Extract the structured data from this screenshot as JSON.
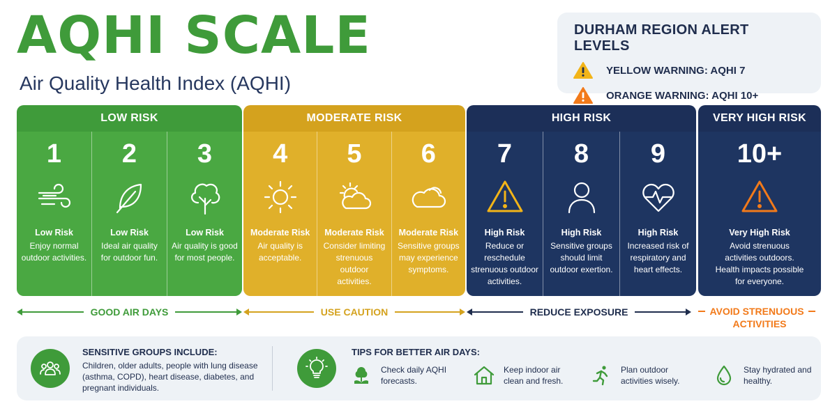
{
  "header": {
    "title": "AQHI SCALE",
    "subtitle": "Air Quality Health Index (AQHI)"
  },
  "alerts": {
    "title": "DURHAM REGION ALERT LEVELS",
    "items": [
      {
        "label": "YELLOW WARNING: AQHI 7",
        "icon": "warning-triangle-icon",
        "color": "#f2b418"
      },
      {
        "label": "ORANGE WARNING: AQHI 10+",
        "icon": "warning-triangle-icon",
        "color": "#f27a1a"
      }
    ]
  },
  "colors": {
    "low": "#4aa842",
    "moderate": "#e0b02a",
    "high": "#1e3561",
    "very_high": "#1e3561",
    "orange_accent": "#f27a1a",
    "yellow_accent": "#f2b418"
  },
  "bands": [
    {
      "title": "LOW RISK",
      "levels": [
        {
          "value": "1",
          "icon": "wind-icon",
          "risk": "Low Risk",
          "desc": "Enjoy normal outdoor activities."
        },
        {
          "value": "2",
          "icon": "leaf-icon",
          "risk": "Low Risk",
          "desc": "Ideal air quality for outdoor fun."
        },
        {
          "value": "3",
          "icon": "tree-icon",
          "risk": "Low Risk",
          "desc": "Air quality is good for most people."
        }
      ]
    },
    {
      "title": "MODERATE RISK",
      "levels": [
        {
          "value": "4",
          "icon": "sun-icon",
          "risk": "Moderate Risk",
          "desc": "Air quality is acceptable."
        },
        {
          "value": "5",
          "icon": "sun-cloud-icon",
          "risk": "Moderate Risk",
          "desc": "Consider limiting strenuous outdoor activities."
        },
        {
          "value": "6",
          "icon": "cloud-icon",
          "risk": "Moderate Risk",
          "desc": "Sensitive groups may experience symptoms."
        }
      ]
    },
    {
      "title": "HIGH RISK",
      "levels": [
        {
          "value": "7",
          "icon": "warning-triangle-icon",
          "risk": "High Risk",
          "desc": "Reduce or reschedule strenuous outdoor activities."
        },
        {
          "value": "8",
          "icon": "person-icon",
          "risk": "High Risk",
          "desc": "Sensitive groups should limit outdoor exertion."
        },
        {
          "value": "9",
          "icon": "heart-pulse-icon",
          "risk": "High Risk",
          "desc": "Increased risk of respiratory and heart effects."
        }
      ]
    },
    {
      "title": "VERY HIGH RISK",
      "levels": [
        {
          "value": "10+",
          "icon": "warning-triangle-icon",
          "risk": "Very High Risk",
          "desc": "Avoid strenuous activities outdoors. Health impacts possible for everyone."
        }
      ]
    }
  ],
  "arrows": [
    {
      "label": "GOOD AIR DAYS",
      "color": "#3f9b3a"
    },
    {
      "label": "USE CAUTION",
      "color": "#d4a21e"
    },
    {
      "label": "REDUCE EXPOSURE",
      "color": "#1f2d4d"
    },
    {
      "label_line1": "AVOID STRENUOUS",
      "label_line2": "ACTIVITIES",
      "color": "#f27a1a"
    }
  ],
  "sensitive": {
    "title": "SENSITIVE GROUPS INCLUDE:",
    "text": "Children, older adults, people with lung disease (asthma, COPD), heart disease, diabetes, and pregnant individuals.",
    "icon": "people-group-icon"
  },
  "tips": {
    "title": "TIPS FOR BETTER AIR DAYS:",
    "icon": "lightbulb-icon",
    "items": [
      {
        "icon": "tree-hand-icon",
        "text": "Check daily AQHI forecasts."
      },
      {
        "icon": "house-icon",
        "text": "Keep indoor air clean and fresh."
      },
      {
        "icon": "running-person-icon",
        "text": "Plan outdoor activities wisely."
      },
      {
        "icon": "water-drop-icon",
        "text": "Stay hydrated and healthy."
      }
    ]
  }
}
